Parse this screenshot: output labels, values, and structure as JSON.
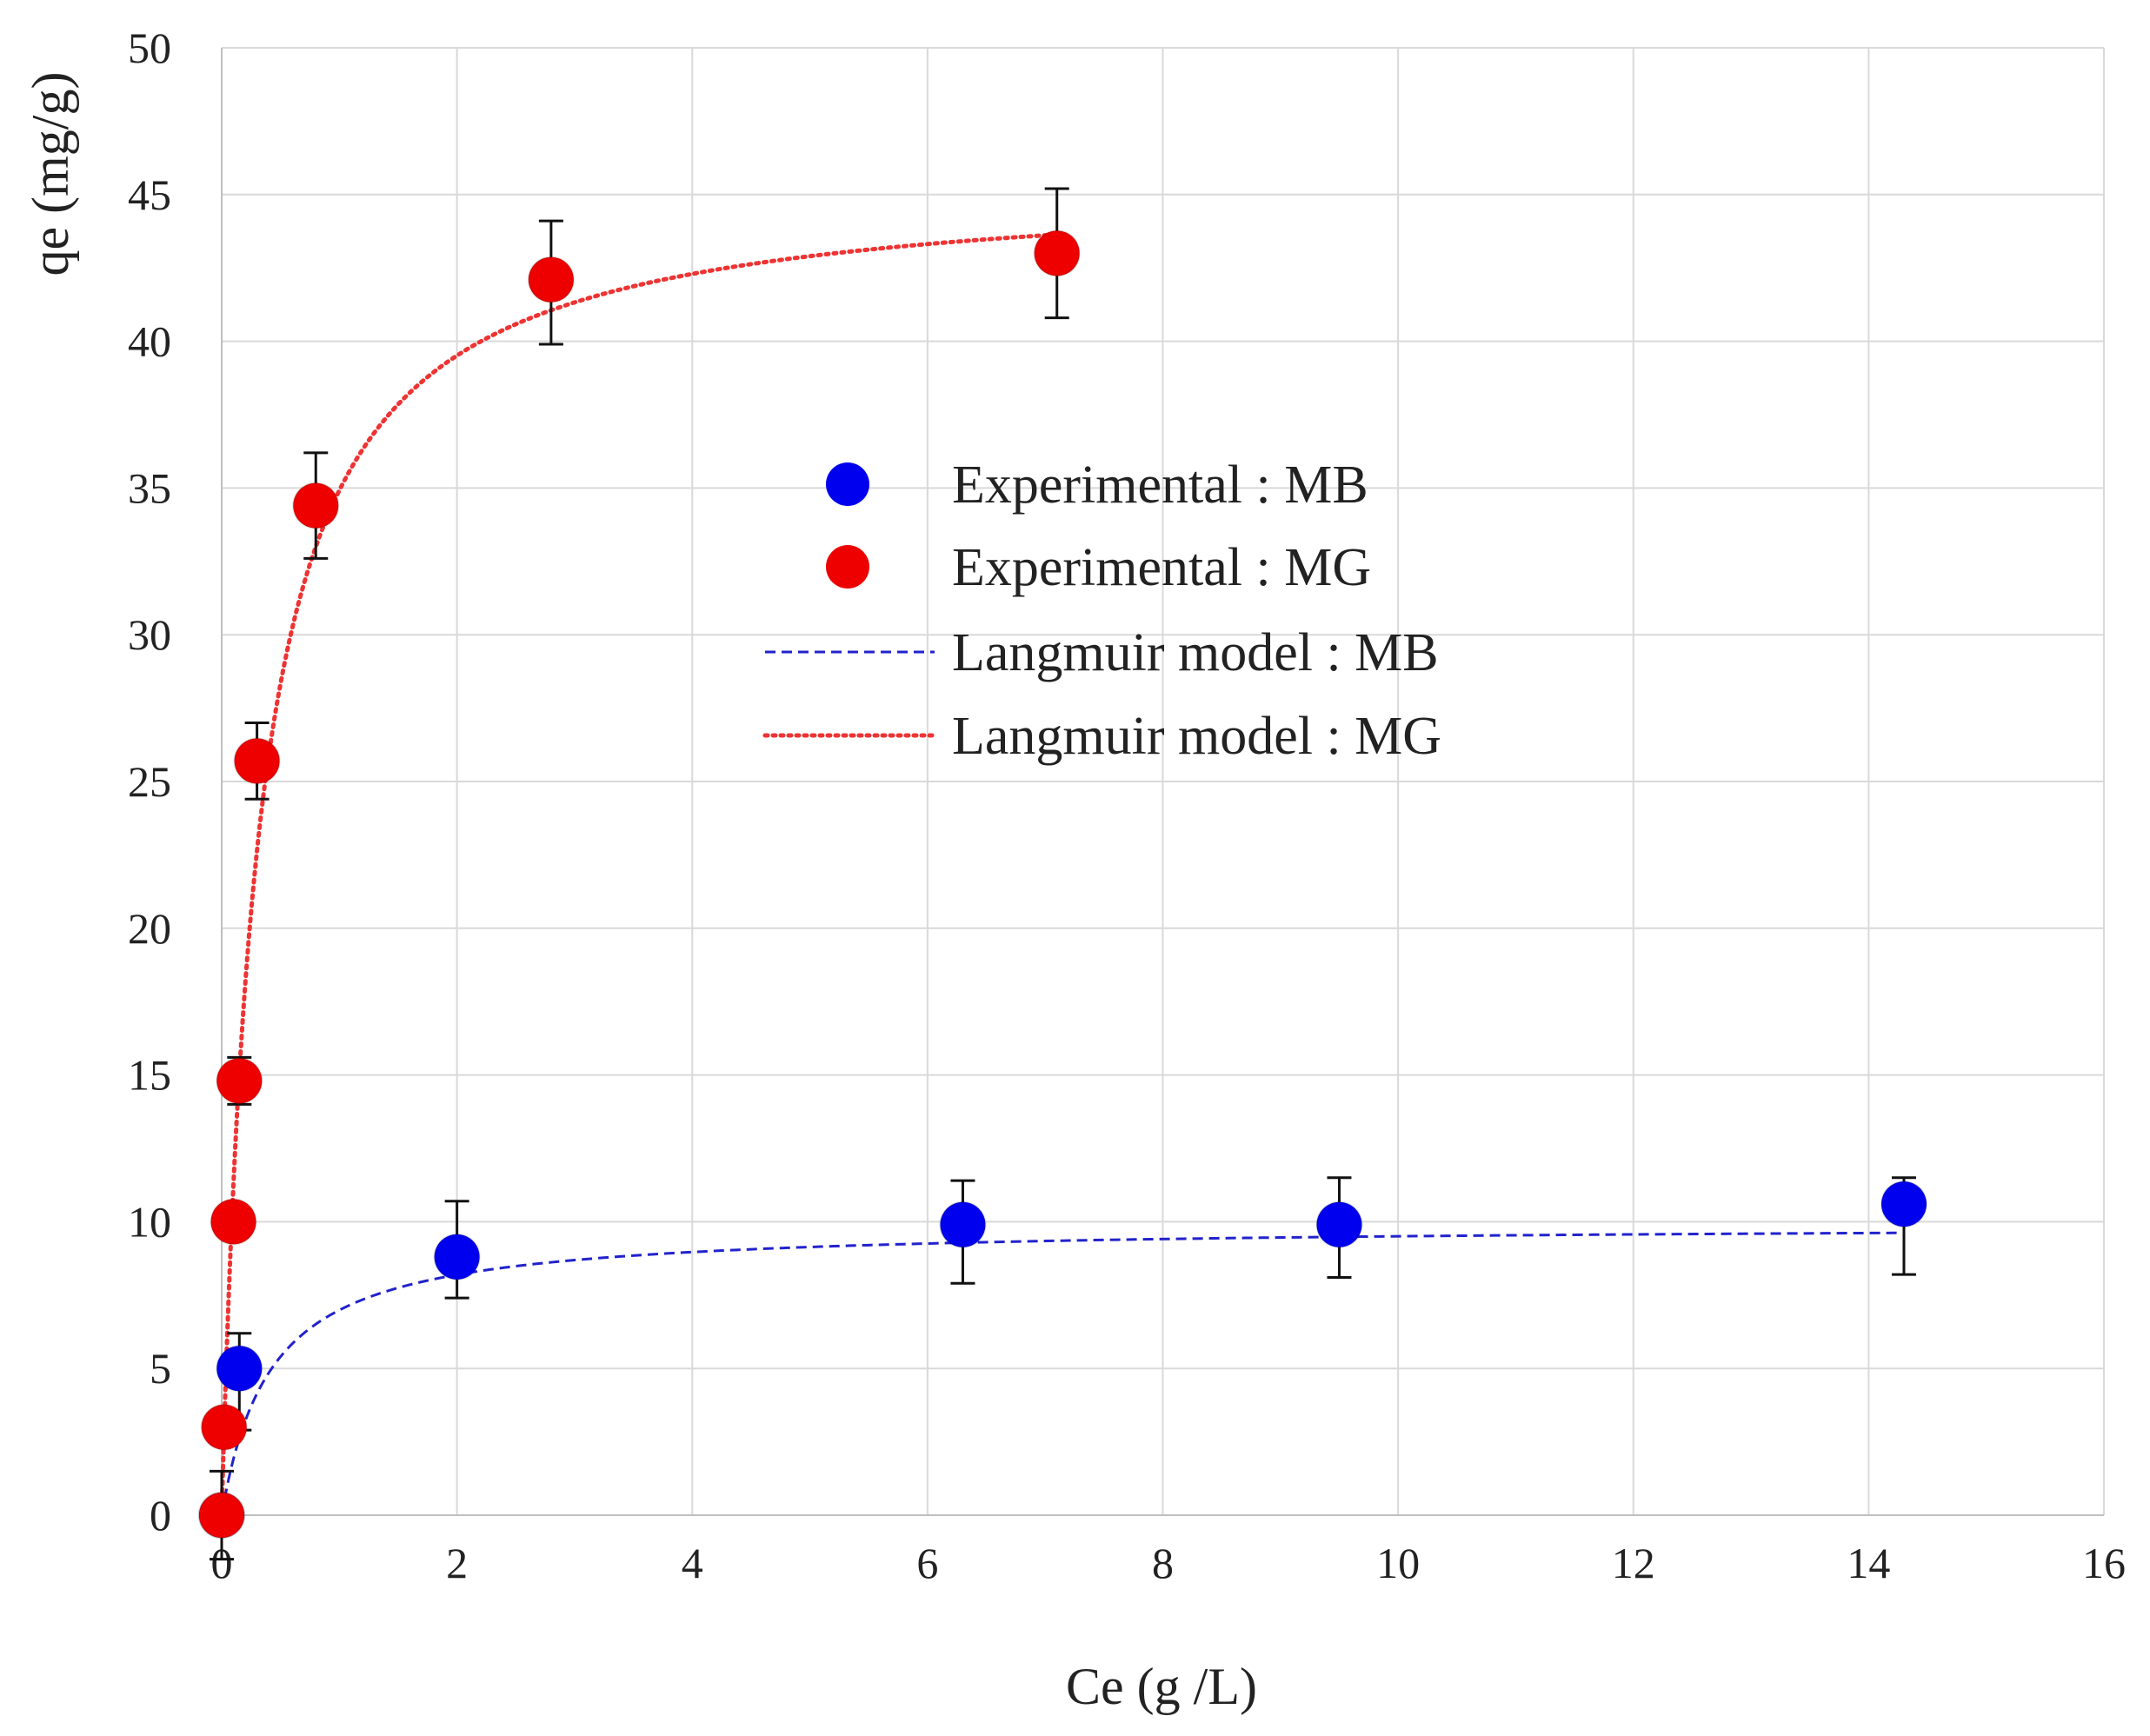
{
  "chart_data": {
    "type": "scatter",
    "title": "",
    "xlabel": "Ce (g /L)",
    "ylabel": "qe (mg/g)",
    "xlim": [
      0,
      16
    ],
    "ylim": [
      0,
      50
    ],
    "xticks": [
      0,
      2,
      4,
      6,
      8,
      10,
      12,
      14,
      16
    ],
    "yticks": [
      0,
      5,
      10,
      15,
      20,
      25,
      30,
      35,
      40,
      45,
      50
    ],
    "grid": true,
    "legend_position": "center",
    "series": [
      {
        "name": "Experimental : MB",
        "kind": "points",
        "color": "#0000ee",
        "x": [
          0,
          0.15,
          2.0,
          6.3,
          9.5,
          14.3
        ],
        "y": [
          0,
          5.0,
          8.8,
          9.9,
          9.9,
          10.6
        ],
        "err_low": [
          1.5,
          2.1,
          1.4,
          2.0,
          1.8,
          2.4
        ],
        "err_high": [
          1.5,
          1.2,
          1.9,
          1.5,
          1.6,
          0.9
        ]
      },
      {
        "name": "Experimental : MG",
        "kind": "points",
        "color": "#ee0000",
        "x": [
          0,
          0.02,
          0.1,
          0.15,
          0.3,
          0.8,
          2.8,
          7.1
        ],
        "y": [
          0,
          3.0,
          10.0,
          14.8,
          25.7,
          34.4,
          42.1,
          43.0
        ],
        "err_low": [
          0,
          0,
          0,
          0.8,
          1.3,
          1.8,
          2.2,
          2.2
        ],
        "err_high": [
          0,
          0,
          0,
          0.8,
          1.3,
          1.8,
          2.0,
          2.2
        ]
      },
      {
        "name": "Langmuir model : MB",
        "kind": "line",
        "style": "dashed",
        "color": "#2222cc",
        "qmax": 9.9,
        "KL": 2.4,
        "x_range": [
          0,
          14.3
        ]
      },
      {
        "name": "Langmuir model : MG",
        "kind": "line",
        "style": "dotted",
        "color": "#ee3333",
        "qmax": 45.5,
        "KL": 3.3,
        "x_range": [
          0,
          7.1
        ]
      }
    ]
  }
}
